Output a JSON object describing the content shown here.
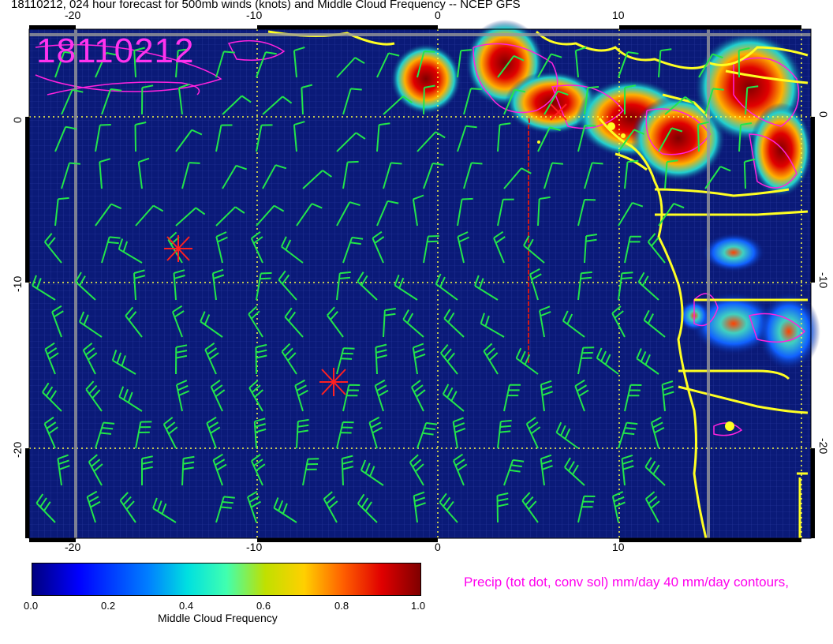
{
  "title": "18110212, 024 hour forecast for 500mb winds (knots) and Middle Cloud Frequency -- NCEP GFS",
  "stamp": "18110212",
  "axes": {
    "x_top": [
      "-20",
      "-10",
      "0",
      "10"
    ],
    "x_bottom": [
      "-20",
      "-10",
      "0",
      "10"
    ],
    "y_left": [
      "0",
      "-10",
      "-20"
    ],
    "y_right": [
      "0",
      "-10",
      "-20"
    ]
  },
  "colorbar": {
    "ticks": [
      "0.0",
      "0.2",
      "0.4",
      "0.6",
      "0.8",
      "1.0"
    ],
    "label": "Middle Cloud Frequency"
  },
  "precip_label": "Precip (tot dot, conv sol) mm/day 40 mm/day contours,",
  "colors": {
    "ocean": "#0a1a78",
    "wind_barbs": "#22e64a",
    "coastline": "#ffff22",
    "precip_contours": "#ff22dd",
    "storm_markers": "#ff2020",
    "gridlines": "#ffff44"
  }
}
